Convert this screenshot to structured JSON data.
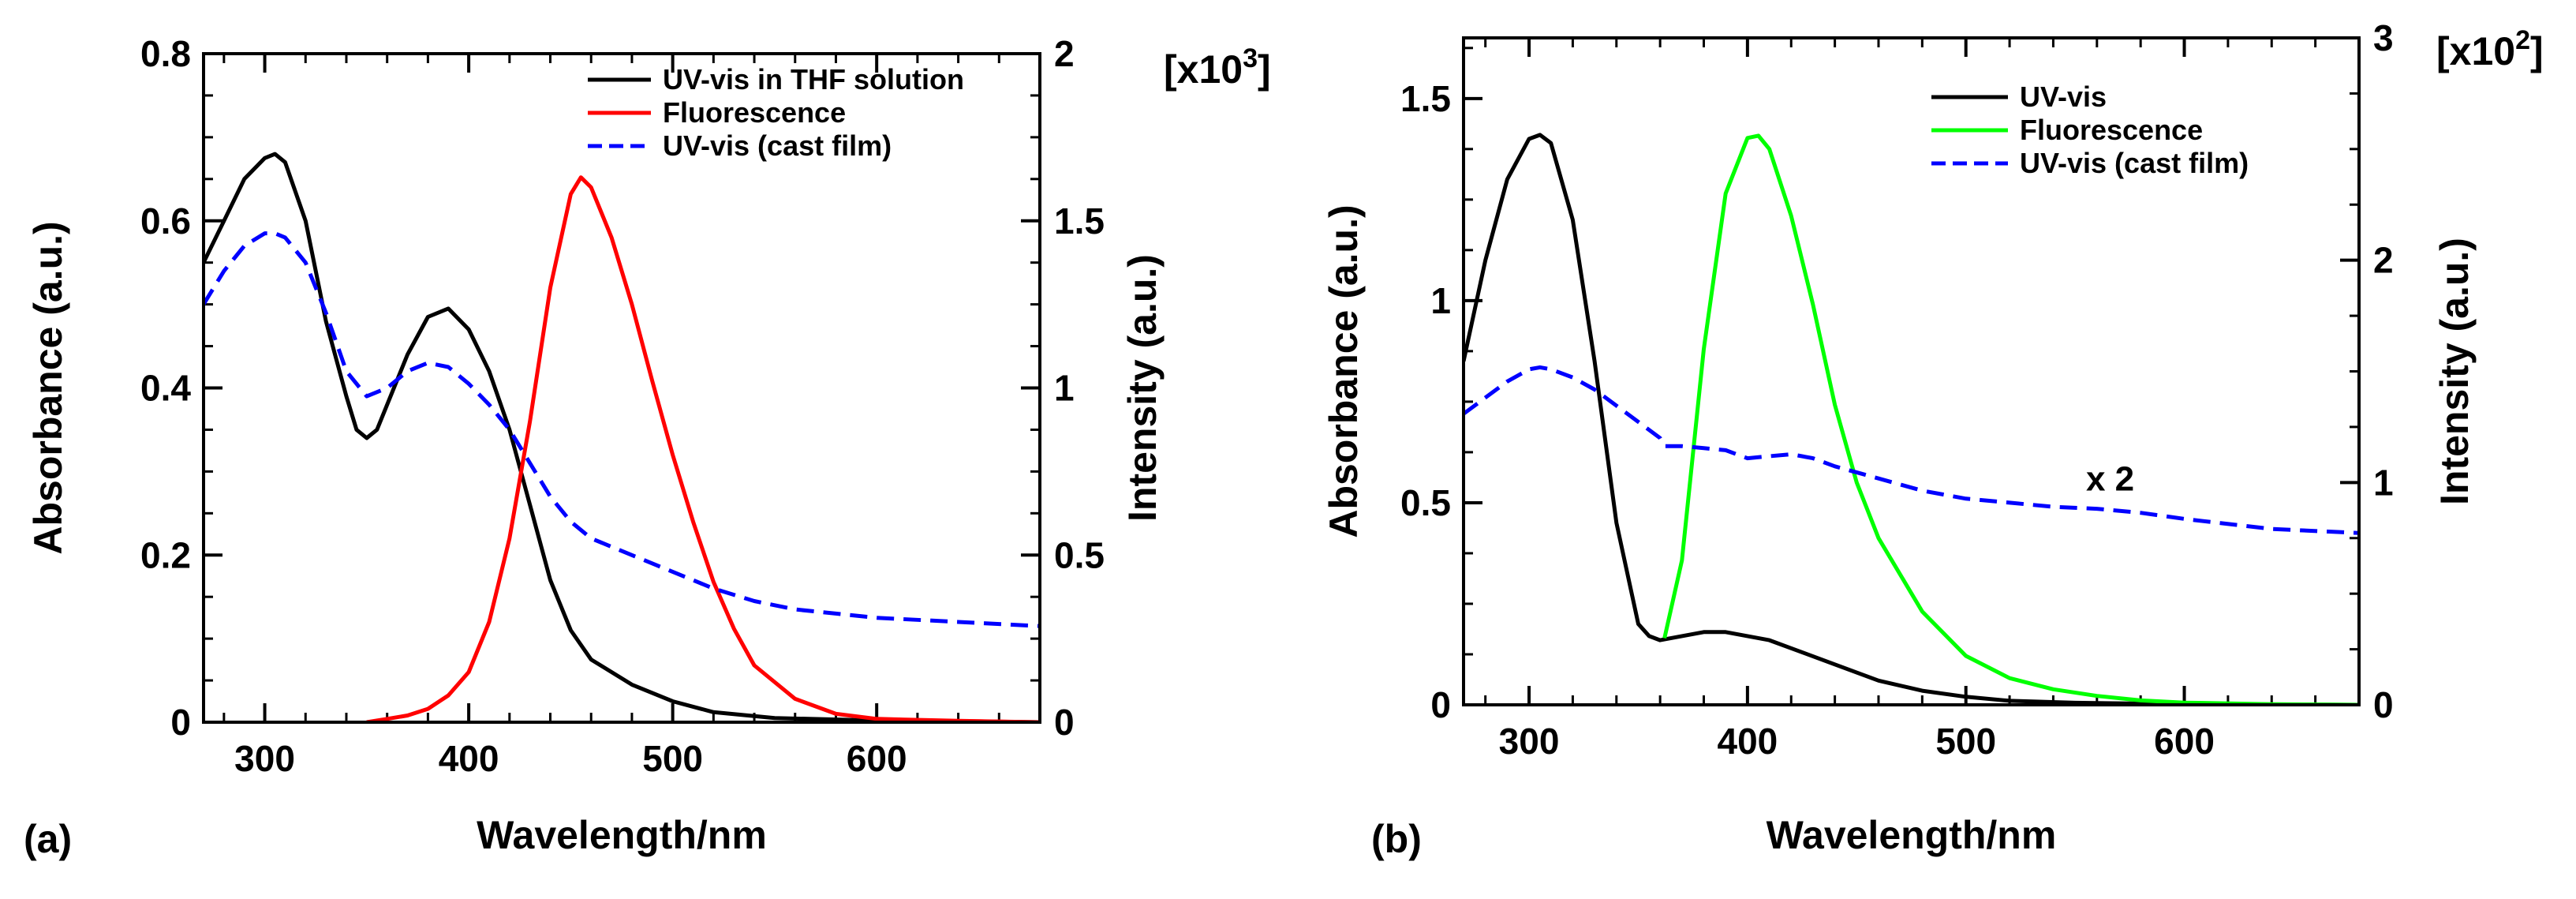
{
  "chart_data": [
    {
      "type": "line",
      "panel_label": "(a)",
      "xlabel": "Wavelength/nm",
      "ylabel": "Absorbance (a.u.)",
      "y2label": "Intensity (a.u.)",
      "y2_multiplier": "[x10",
      "y2_multiplier_exp": "3",
      "y2_multiplier_close": "]",
      "xlim": [
        270,
        680
      ],
      "ylim": [
        0,
        0.8
      ],
      "y2lim": [
        0,
        2
      ],
      "xticks": [
        300,
        400,
        500,
        600
      ],
      "yticks": [
        0,
        0.2,
        0.4,
        0.6,
        0.8
      ],
      "yticklabels": [
        "0",
        "0.2",
        "0.4",
        "0.6",
        "0.8"
      ],
      "y2ticks": [
        0,
        0.5,
        1,
        1.5,
        2
      ],
      "y2ticklabels": [
        "0",
        "0.5",
        "1",
        "1.5",
        "2"
      ],
      "legend_position": "top-right",
      "series": [
        {
          "name": "UV-vis in THF solution",
          "axis": "left",
          "color": "#000000",
          "style": "solid",
          "x": [
            270,
            280,
            290,
            300,
            305,
            310,
            320,
            330,
            340,
            345,
            350,
            355,
            360,
            370,
            380,
            390,
            400,
            410,
            420,
            430,
            440,
            450,
            460,
            480,
            500,
            520,
            550,
            600,
            650,
            680
          ],
          "y": [
            0.55,
            0.6,
            0.65,
            0.675,
            0.68,
            0.67,
            0.6,
            0.48,
            0.39,
            0.35,
            0.34,
            0.35,
            0.38,
            0.44,
            0.485,
            0.495,
            0.47,
            0.42,
            0.35,
            0.26,
            0.17,
            0.11,
            0.075,
            0.045,
            0.025,
            0.012,
            0.005,
            0.002,
            0.001,
            0.0
          ]
        },
        {
          "name": "Fluorescence",
          "axis": "right",
          "color": "#ff0000",
          "style": "solid",
          "x": [
            350,
            360,
            370,
            380,
            390,
            400,
            410,
            420,
            430,
            440,
            450,
            455,
            460,
            470,
            480,
            490,
            500,
            510,
            520,
            530,
            540,
            560,
            580,
            600,
            640,
            680
          ],
          "y": [
            0.0,
            0.01,
            0.02,
            0.04,
            0.08,
            0.15,
            0.3,
            0.55,
            0.9,
            1.3,
            1.58,
            1.63,
            1.6,
            1.45,
            1.25,
            1.02,
            0.8,
            0.6,
            0.42,
            0.28,
            0.17,
            0.07,
            0.025,
            0.01,
            0.004,
            0.0
          ]
        },
        {
          "name": "UV-vis (cast film)",
          "axis": "left",
          "color": "#0000ff",
          "style": "dashed",
          "x": [
            270,
            280,
            290,
            300,
            305,
            310,
            320,
            330,
            340,
            350,
            360,
            370,
            380,
            390,
            400,
            410,
            420,
            430,
            440,
            450,
            460,
            470,
            480,
            500,
            520,
            540,
            560,
            580,
            600,
            640,
            680
          ],
          "y": [
            0.5,
            0.54,
            0.57,
            0.585,
            0.585,
            0.58,
            0.55,
            0.49,
            0.42,
            0.39,
            0.4,
            0.42,
            0.43,
            0.425,
            0.405,
            0.38,
            0.35,
            0.31,
            0.27,
            0.24,
            0.22,
            0.21,
            0.2,
            0.18,
            0.16,
            0.145,
            0.135,
            0.13,
            0.125,
            0.12,
            0.115
          ]
        }
      ]
    },
    {
      "type": "line",
      "panel_label": "(b)",
      "xlabel": "Wavelength/nm",
      "ylabel": "Absorbance (a.u.)",
      "y2label": "Intensity (a.u.)",
      "y2_multiplier": "[x10",
      "y2_multiplier_exp": "2",
      "y2_multiplier_close": "]",
      "xlim": [
        270,
        680
      ],
      "ylim": [
        0,
        1.65
      ],
      "y2lim": [
        0,
        3
      ],
      "xticks": [
        300,
        400,
        500,
        600
      ],
      "yticks": [
        0,
        0.5,
        1,
        1.5
      ],
      "yticklabels": [
        "0",
        "0.5",
        "1",
        "1.5"
      ],
      "y2ticks": [
        0,
        1,
        2,
        3
      ],
      "y2ticklabels": [
        "0",
        "1",
        "2",
        "3"
      ],
      "legend_position": "top-right",
      "annotation": {
        "text": "x 2",
        "x": 555,
        "y": 0.53
      },
      "series": [
        {
          "name": "UV-vis",
          "axis": "left",
          "color": "#000000",
          "style": "solid",
          "x": [
            270,
            280,
            290,
            300,
            305,
            310,
            320,
            330,
            340,
            350,
            355,
            360,
            370,
            380,
            390,
            400,
            410,
            420,
            440,
            460,
            480,
            500,
            520,
            550,
            600,
            650,
            680
          ],
          "y": [
            0.85,
            1.1,
            1.3,
            1.4,
            1.41,
            1.39,
            1.2,
            0.85,
            0.45,
            0.2,
            0.17,
            0.16,
            0.17,
            0.18,
            0.18,
            0.17,
            0.16,
            0.14,
            0.1,
            0.06,
            0.035,
            0.02,
            0.01,
            0.005,
            0.002,
            0.001,
            0.0
          ]
        },
        {
          "name": "Fluorescence",
          "axis": "right",
          "color": "#00ff00",
          "style": "solid",
          "x": [
            362,
            370,
            380,
            390,
            400,
            405,
            410,
            420,
            430,
            440,
            450,
            460,
            480,
            500,
            520,
            540,
            560,
            580,
            600,
            640,
            680
          ],
          "y": [
            0.3,
            0.65,
            1.6,
            2.3,
            2.55,
            2.56,
            2.5,
            2.2,
            1.8,
            1.35,
            1.0,
            0.75,
            0.42,
            0.22,
            0.12,
            0.07,
            0.04,
            0.02,
            0.01,
            0.003,
            0.0
          ]
        },
        {
          "name": "UV-vis (cast film)",
          "axis": "left",
          "color": "#0000ff",
          "style": "dashed",
          "x": [
            270,
            280,
            290,
            300,
            305,
            310,
            320,
            330,
            340,
            350,
            360,
            362,
            370,
            380,
            390,
            400,
            410,
            420,
            430,
            440,
            460,
            480,
            500,
            520,
            540,
            560,
            580,
            600,
            640,
            680
          ],
          "y": [
            0.72,
            0.76,
            0.8,
            0.83,
            0.835,
            0.83,
            0.81,
            0.78,
            0.74,
            0.7,
            0.66,
            0.64,
            0.64,
            0.635,
            0.63,
            0.61,
            0.615,
            0.62,
            0.61,
            0.59,
            0.56,
            0.53,
            0.51,
            0.5,
            0.49,
            0.485,
            0.475,
            0.46,
            0.435,
            0.425
          ]
        }
      ]
    }
  ]
}
